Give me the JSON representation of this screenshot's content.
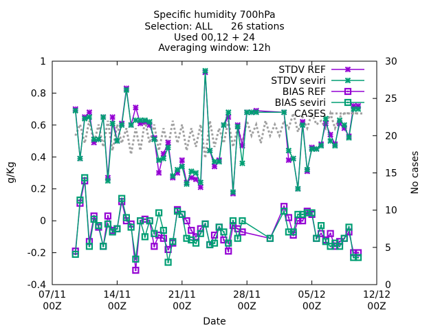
{
  "chart_data": {
    "type": "line",
    "title_lines": [
      "Specific humidity 700hPa",
      "Selection: ALL      26 stations",
      "Used 00,12 + 24",
      "Averaging window: 12h"
    ],
    "xlabel": "Date",
    "ylabel": "g/Kg",
    "y2label": "No cases",
    "x_axis": {
      "unit": "day of period (07/11 = 0)",
      "range": [
        0,
        35
      ]
    },
    "xticks": [
      {
        "value": 0,
        "label_top": "07/11",
        "label_bottom": "00Z"
      },
      {
        "value": 7,
        "label_top": "14/11",
        "label_bottom": "00Z"
      },
      {
        "value": 14,
        "label_top": "21/11",
        "label_bottom": "00Z"
      },
      {
        "value": 21,
        "label_top": "28/11",
        "label_bottom": "00Z"
      },
      {
        "value": 28,
        "label_top": "05/12",
        "label_bottom": "00Z"
      },
      {
        "value": 35,
        "label_top": "12/12",
        "label_bottom": "00Z"
      }
    ],
    "ylim": [
      -0.4,
      1.0
    ],
    "yticks": [
      -0.4,
      -0.2,
      0,
      0.2,
      0.4,
      0.6,
      0.8,
      1
    ],
    "y2lim": [
      0,
      30
    ],
    "y2ticks": [
      0,
      5,
      10,
      15,
      20,
      25,
      30
    ],
    "legend_position": "top-right",
    "grid": false,
    "series": [
      {
        "name": "STDV REF",
        "color": "#9400d3",
        "marker": "cross",
        "axis": "y1",
        "x": [
          2.5,
          3,
          3.5,
          4,
          4.5,
          5,
          5.5,
          6,
          6.5,
          7,
          7.5,
          8,
          8.5,
          9,
          9.5,
          10,
          10.5,
          11,
          11.5,
          12,
          12.5,
          13,
          13.5,
          14,
          14.5,
          15,
          15.5,
          16,
          16.5,
          17,
          17.5,
          18,
          18.5,
          19,
          19.5,
          20,
          20.5,
          21,
          21.5,
          22,
          25,
          25.5,
          26,
          26.5,
          27,
          27.5,
          28,
          28.5,
          29,
          29.5,
          30,
          30.5,
          31,
          31.5,
          32,
          32.5,
          33
        ],
        "values": [
          0.7,
          0.39,
          0.65,
          0.68,
          0.49,
          0.51,
          0.65,
          0.27,
          0.65,
          0.5,
          0.61,
          0.83,
          0.6,
          0.71,
          0.61,
          0.62,
          0.6,
          0.52,
          0.3,
          0.42,
          0.49,
          0.27,
          0.3,
          0.38,
          0.24,
          0.27,
          0.26,
          0.21,
          0.93,
          0.44,
          0.34,
          0.38,
          0.6,
          0.65,
          0.17,
          0.6,
          0.47,
          0.68,
          0.68,
          0.69,
          0.68,
          0.38,
          0.39,
          0.2,
          0.62,
          0.31,
          0.46,
          0.45,
          0.48,
          0.61,
          0.54,
          0.48,
          0.61,
          0.58,
          0.53,
          0.72,
          0.72
        ]
      },
      {
        "name": "STDV seviri",
        "color": "#009e73",
        "marker": "cross",
        "axis": "y1",
        "x": [
          2.5,
          3,
          3.5,
          4,
          4.5,
          5,
          5.5,
          6,
          6.5,
          7,
          7.5,
          8,
          8.5,
          9,
          9.5,
          10,
          10.5,
          11,
          11.5,
          12,
          12.5,
          13,
          13.5,
          14,
          14.5,
          15,
          15.5,
          16,
          16.5,
          17,
          17.5,
          18,
          18.5,
          19,
          19.5,
          20,
          20.5,
          21,
          21.5,
          22,
          25,
          25.5,
          26,
          26.5,
          27,
          27.5,
          28,
          28.5,
          29,
          29.5,
          30,
          30.5,
          31,
          31.5,
          32,
          32.5,
          33
        ],
        "values": [
          0.69,
          0.39,
          0.64,
          0.65,
          0.51,
          0.51,
          0.65,
          0.25,
          0.61,
          0.5,
          0.6,
          0.82,
          0.6,
          0.63,
          0.63,
          0.63,
          0.62,
          0.51,
          0.38,
          0.39,
          0.46,
          0.28,
          0.32,
          0.34,
          0.23,
          0.31,
          0.3,
          0.24,
          0.94,
          0.44,
          0.37,
          0.37,
          0.6,
          0.68,
          0.18,
          0.59,
          0.36,
          0.68,
          0.68,
          0.68,
          0.68,
          0.44,
          0.39,
          0.2,
          0.6,
          0.32,
          0.45,
          0.45,
          0.47,
          0.64,
          0.5,
          0.47,
          0.63,
          0.6,
          0.52,
          0.7,
          0.7
        ]
      },
      {
        "name": "BIAS REF",
        "color": "#9400d3",
        "marker": "square",
        "axis": "y1",
        "x": [
          2.5,
          3,
          3.5,
          4,
          4.5,
          5,
          5.5,
          6,
          6.5,
          7,
          7.5,
          8,
          8.5,
          9,
          9.5,
          10,
          10.5,
          11,
          11.5,
          12,
          12.5,
          13,
          13.5,
          14,
          14.5,
          15,
          15.5,
          16,
          16.5,
          17,
          17.5,
          18,
          18.5,
          19,
          19.5,
          20,
          20.5,
          23.5,
          25,
          25.5,
          26,
          26.5,
          27,
          27.5,
          28,
          28.5,
          29,
          29.5,
          30,
          30.5,
          31,
          31.5,
          32,
          32.5,
          33
        ],
        "values": [
          -0.19,
          0.11,
          0.25,
          -0.13,
          0.03,
          -0.04,
          -0.16,
          0.03,
          -0.06,
          -0.05,
          0.12,
          0.0,
          -0.02,
          -0.31,
          0.0,
          0.01,
          0.0,
          -0.16,
          -0.09,
          -0.11,
          -0.18,
          -0.14,
          0.07,
          0.04,
          0.0,
          -0.06,
          -0.1,
          -0.05,
          -0.02,
          -0.15,
          -0.09,
          -0.04,
          -0.12,
          -0.19,
          -0.03,
          -0.05,
          -0.07,
          -0.11,
          0.09,
          0.02,
          -0.09,
          0.0,
          0.0,
          0.06,
          0.04,
          -0.11,
          -0.08,
          -0.12,
          -0.08,
          -0.16,
          -0.13,
          -0.11,
          -0.07,
          -0.2,
          -0.2
        ]
      },
      {
        "name": "BIAS seviri",
        "color": "#009e73",
        "marker": "square",
        "axis": "y1",
        "x": [
          2.5,
          3,
          3.5,
          4,
          4.5,
          5,
          5.5,
          6,
          6.5,
          7,
          7.5,
          8,
          8.5,
          9,
          9.5,
          10,
          10.5,
          11,
          11.5,
          12,
          12.5,
          13,
          13.5,
          14,
          14.5,
          15,
          15.5,
          16,
          16.5,
          17,
          17.5,
          18,
          18.5,
          19,
          19.5,
          20,
          20.5,
          23.5,
          25,
          25.5,
          26,
          26.5,
          27,
          27.5,
          28,
          28.5,
          29,
          29.5,
          30,
          30.5,
          31,
          31.5,
          32,
          32.5,
          33
        ],
        "values": [
          -0.21,
          0.13,
          0.27,
          -0.16,
          0.01,
          -0.03,
          -0.16,
          -0.02,
          -0.07,
          -0.05,
          0.14,
          0.02,
          -0.04,
          -0.24,
          0.0,
          -0.1,
          0.0,
          -0.08,
          0.05,
          -0.06,
          -0.26,
          -0.13,
          0.06,
          0.04,
          -0.11,
          -0.12,
          -0.14,
          -0.08,
          -0.02,
          -0.15,
          -0.14,
          -0.04,
          -0.07,
          -0.14,
          0.0,
          -0.11,
          0.0,
          -0.11,
          0.06,
          -0.07,
          -0.07,
          0.04,
          0.04,
          0.05,
          0.05,
          -0.11,
          -0.03,
          -0.13,
          -0.16,
          -0.14,
          -0.16,
          -0.11,
          -0.04,
          -0.23,
          -0.23
        ]
      },
      {
        "name": "CASES",
        "color": "#a0a0a0",
        "marker": "none",
        "dashed": true,
        "axis": "y2",
        "x": [
          2.5,
          3,
          3.5,
          4,
          4.5,
          5,
          5.5,
          6,
          6.5,
          7,
          7.5,
          8,
          8.5,
          9,
          9.5,
          10,
          10.5,
          11,
          11.5,
          12,
          12.5,
          13,
          13.5,
          14,
          14.5,
          15,
          15.5,
          16,
          16.5,
          17,
          17.5,
          18,
          18.5,
          19,
          19.5,
          20,
          20.5,
          21,
          21.5,
          22,
          22.5,
          23,
          23.5,
          24,
          24.5,
          25,
          25.5,
          26,
          26.5,
          27,
          27.5,
          28,
          28.5,
          29,
          29.5,
          30,
          30.5,
          31,
          31.5,
          32,
          32.5,
          33
        ],
        "values": [
          20,
          21.5,
          19,
          22,
          19,
          21.5,
          18.5,
          22,
          18,
          21.5,
          19,
          21,
          17.5,
          21,
          18,
          22,
          19,
          21.5,
          18,
          21,
          18.5,
          22,
          19,
          21.5,
          18,
          21,
          18.5,
          21.5,
          17,
          22,
          18.5,
          21,
          19,
          22,
          18.5,
          21,
          19,
          22,
          20,
          21.5,
          19,
          22,
          20,
          21.5,
          20,
          22,
          21,
          23,
          20.5,
          22.5,
          21,
          23,
          21.5,
          22,
          21,
          23,
          21,
          22.5,
          23,
          23,
          23,
          23
        ]
      }
    ]
  }
}
